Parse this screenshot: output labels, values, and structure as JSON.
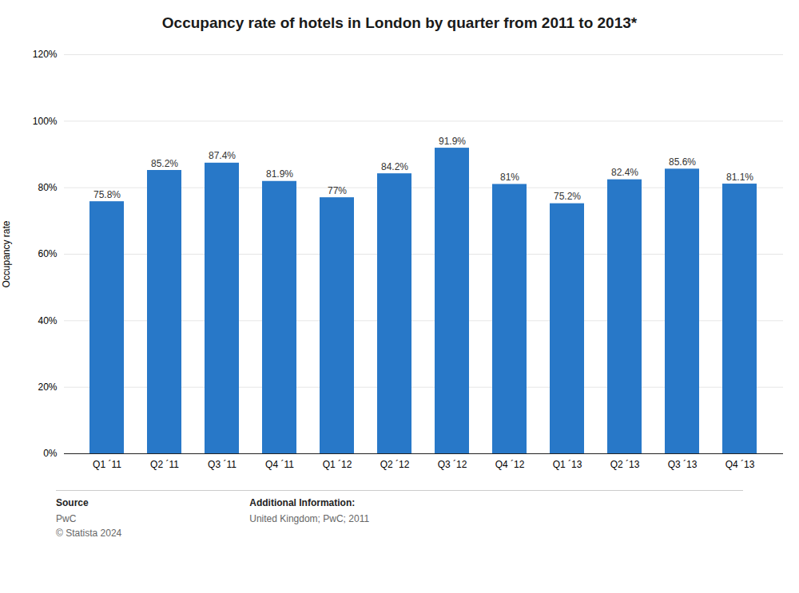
{
  "chart_data": {
    "type": "bar",
    "title": "Occupancy rate of hotels in London by quarter from 2011 to 2013*",
    "categories": [
      "Q1 ´11",
      "Q2 ´11",
      "Q3 ´11",
      "Q4 ´11",
      "Q1 ´12",
      "Q2 ´12",
      "Q3 ´12",
      "Q4 ´12",
      "Q1 ´13",
      "Q2 ´13",
      "Q3 ´13",
      "Q4 ´13"
    ],
    "values": [
      75.8,
      85.2,
      87.4,
      81.9,
      77.0,
      84.2,
      91.9,
      81.0,
      75.2,
      82.4,
      85.6,
      81.1
    ],
    "value_labels": [
      "75.8%",
      "85.2%",
      "87.4%",
      "81.9%",
      "77%",
      "84.2%",
      "91.9%",
      "81%",
      "75.2%",
      "82.4%",
      "85.6%",
      "81.1%"
    ],
    "data_labels": true,
    "color": "#2878c8",
    "ylabel": "Occupancy rate",
    "ylim": [
      0,
      120
    ],
    "yticks": [
      {
        "value": 0,
        "label": "0%"
      },
      {
        "value": 20,
        "label": "20%"
      },
      {
        "value": 40,
        "label": "40%"
      },
      {
        "value": 60,
        "label": "60%"
      },
      {
        "value": 80,
        "label": "80%"
      },
      {
        "value": 100,
        "label": "100%"
      },
      {
        "value": 120,
        "label": "120%"
      }
    ],
    "grid": true,
    "annotations": [
      "Source",
      "PwC\n© Statista 2024",
      "Additional Information:",
      "United Kingdom; PwC; 2011"
    ]
  }
}
